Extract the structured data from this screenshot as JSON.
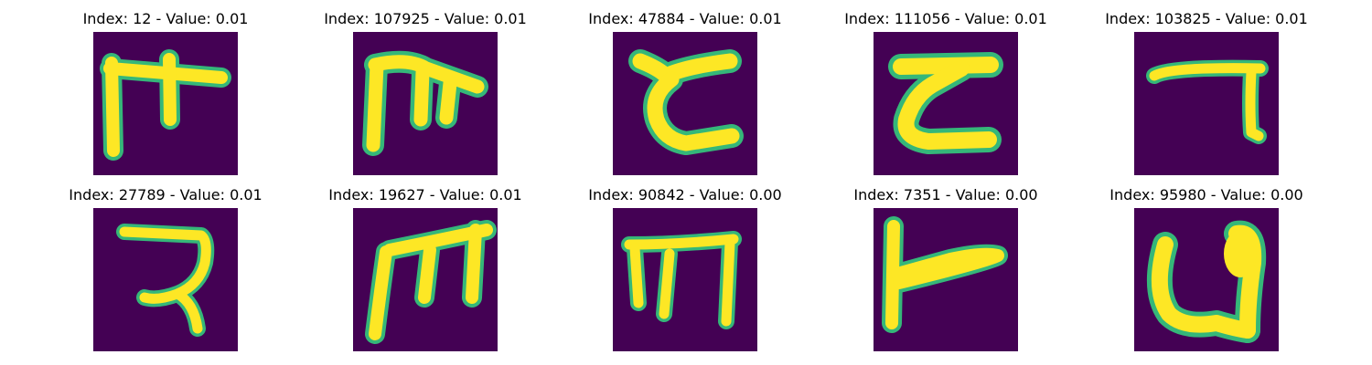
{
  "colors": {
    "background": "#440154",
    "stroke_core": "#fde725",
    "stroke_edge": "#35b779"
  },
  "panels": [
    {
      "title": "Index: 12 - Value: 0.01"
    },
    {
      "title": "Index: 107925 - Value: 0.01"
    },
    {
      "title": "Index: 47884 - Value: 0.01"
    },
    {
      "title": "Index: 111056 - Value: 0.01"
    },
    {
      "title": "Index: 103825 - Value: 0.01"
    },
    {
      "title": "Index: 27789 - Value: 0.01"
    },
    {
      "title": "Index: 19627 - Value: 0.01"
    },
    {
      "title": "Index: 90842 - Value: 0.00"
    },
    {
      "title": "Index: 7351 - Value: 0.00"
    },
    {
      "title": "Index: 95980 - Value: 0.00"
    }
  ]
}
